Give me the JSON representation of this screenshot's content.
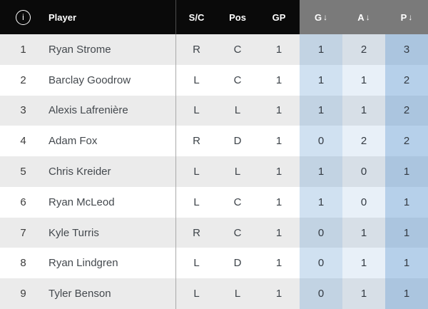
{
  "header": {
    "info_icon_glyph": "i",
    "sort_arrow": "↓",
    "columns": {
      "player": "Player",
      "sc": "S/C",
      "pos": "Pos",
      "gp": "GP",
      "g": "G",
      "a": "A",
      "p": "P"
    }
  },
  "table": {
    "rows": [
      {
        "rank": "1",
        "player": "Ryan Strome",
        "sc": "R",
        "pos": "C",
        "gp": "1",
        "g": "1",
        "a": "2",
        "p": "3"
      },
      {
        "rank": "2",
        "player": "Barclay Goodrow",
        "sc": "L",
        "pos": "C",
        "gp": "1",
        "g": "1",
        "a": "1",
        "p": "2"
      },
      {
        "rank": "3",
        "player": "Alexis Lafrenière",
        "sc": "L",
        "pos": "L",
        "gp": "1",
        "g": "1",
        "a": "1",
        "p": "2"
      },
      {
        "rank": "4",
        "player": "Adam Fox",
        "sc": "R",
        "pos": "D",
        "gp": "1",
        "g": "0",
        "a": "2",
        "p": "2"
      },
      {
        "rank": "5",
        "player": "Chris Kreider",
        "sc": "L",
        "pos": "L",
        "gp": "1",
        "g": "1",
        "a": "0",
        "p": "1"
      },
      {
        "rank": "6",
        "player": "Ryan McLeod",
        "sc": "L",
        "pos": "C",
        "gp": "1",
        "g": "1",
        "a": "0",
        "p": "1"
      },
      {
        "rank": "7",
        "player": "Kyle Turris",
        "sc": "R",
        "pos": "C",
        "gp": "1",
        "g": "0",
        "a": "1",
        "p": "1"
      },
      {
        "rank": "8",
        "player": "Ryan Lindgren",
        "sc": "L",
        "pos": "D",
        "gp": "1",
        "g": "0",
        "a": "1",
        "p": "1"
      },
      {
        "rank": "9",
        "player": "Tyler Benson",
        "sc": "L",
        "pos": "L",
        "gp": "1",
        "g": "0",
        "a": "1",
        "p": "1"
      }
    ]
  },
  "colors": {
    "header_bg": "#0a0a0a",
    "header_stats_bg": "#7a7a7a",
    "header_text": "#ffffff",
    "row_bg": "#ffffff",
    "row_alt_bg": "#ebebeb",
    "stat_col_g_bg_on_white": "#d2e3f2",
    "stat_col_a_bg_on_white": "#e3eef8",
    "stat_col_p_bg_on_white": "#bcd7ec",
    "body_text": "#44494e"
  }
}
